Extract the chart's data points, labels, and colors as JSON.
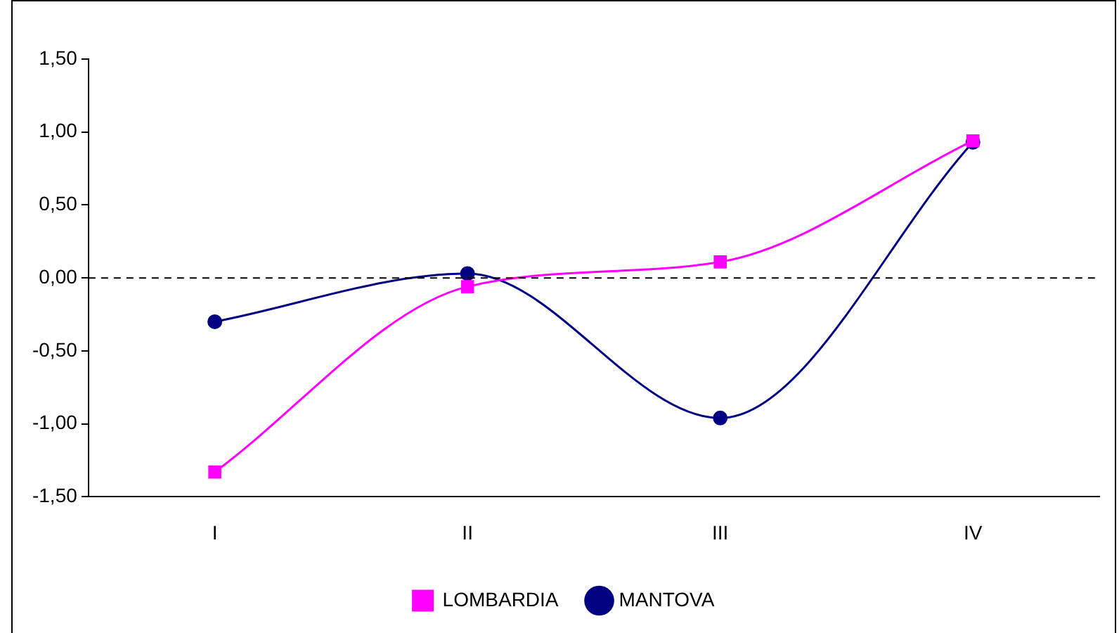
{
  "chart_data": {
    "type": "line",
    "categories": [
      "I",
      "II",
      "III",
      "IV"
    ],
    "series": [
      {
        "name": "MANTOVA",
        "color": "#000080",
        "values": [
          -0.3,
          0.03,
          -0.96,
          0.93
        ],
        "marker": "circle"
      },
      {
        "name": "LOMBARDIA",
        "color": "#ff00ff",
        "values": [
          -1.33,
          -0.06,
          0.11,
          0.94
        ],
        "marker": "square"
      }
    ],
    "ylim": [
      -1.5,
      1.5
    ],
    "yticks": [
      {
        "value": -1.5,
        "label": "-1,50"
      },
      {
        "value": -1,
        "label": "-1,00"
      },
      {
        "value": -0.5,
        "label": "-0,50"
      },
      {
        "value": 0,
        "label": "0,00"
      },
      {
        "value": 0.5,
        "label": "0,50"
      },
      {
        "value": 1,
        "label": "1,00"
      },
      {
        "value": 1.5,
        "label": "1,50"
      }
    ],
    "ref_lines": [
      {
        "axis": "y",
        "value": 0,
        "color": "#000000",
        "line_style": "dashed"
      }
    ],
    "grid": false,
    "legend": "bottom",
    "line_style": "solid"
  }
}
